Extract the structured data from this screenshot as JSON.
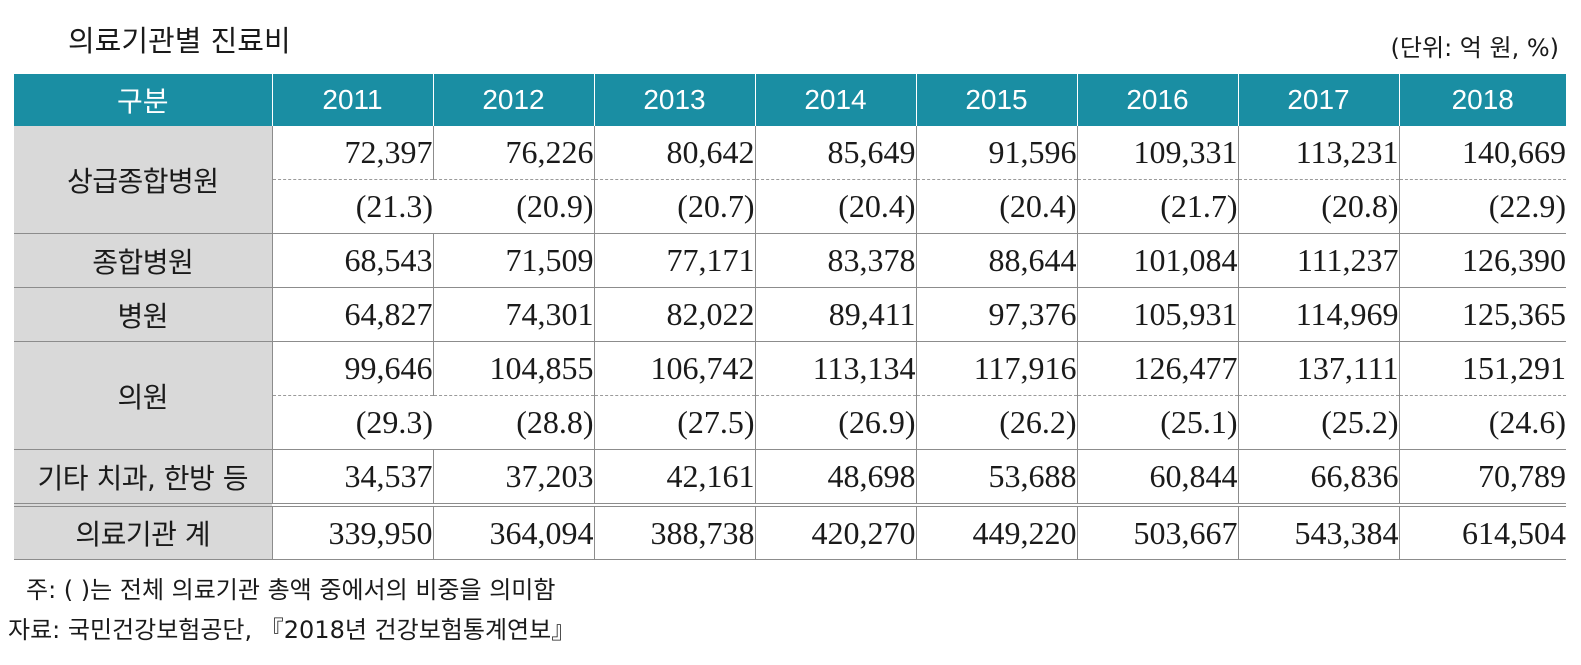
{
  "title": "의료기관별 진료비",
  "unit": "(단위: 억 원, %)",
  "table": {
    "corner": "구분",
    "years": [
      "2011",
      "2012",
      "2013",
      "2014",
      "2015",
      "2016",
      "2017",
      "2018"
    ],
    "rows": {
      "tertiary": {
        "label": "상급종합병원",
        "values": [
          "72,397",
          "76,226",
          "80,642",
          "85,649",
          "91,596",
          "109,331",
          "113,231",
          "140,669"
        ],
        "shares": [
          "(21.3)",
          "(20.9)",
          "(20.7)",
          "(20.4)",
          "(20.4)",
          "(21.7)",
          "(20.8)",
          "(22.9)"
        ]
      },
      "general": {
        "label": "종합병원",
        "values": [
          "68,543",
          "71,509",
          "77,171",
          "83,378",
          "88,644",
          "101,084",
          "111,237",
          "126,390"
        ]
      },
      "hospital": {
        "label": "병원",
        "values": [
          "64,827",
          "74,301",
          "82,022",
          "89,411",
          "97,376",
          "105,931",
          "114,969",
          "125,365"
        ]
      },
      "clinic": {
        "label": "의원",
        "values": [
          "99,646",
          "104,855",
          "106,742",
          "113,134",
          "117,916",
          "126,477",
          "137,111",
          "151,291"
        ],
        "shares": [
          "(29.3)",
          "(28.8)",
          "(27.5)",
          "(26.9)",
          "(26.2)",
          "(25.1)",
          "(25.2)",
          "(24.6)"
        ]
      },
      "others": {
        "label": "기타 치과, 한방 등",
        "values": [
          "34,537",
          "37,203",
          "42,161",
          "48,698",
          "53,688",
          "60,844",
          "66,836",
          "70,789"
        ]
      },
      "total": {
        "label": "의료기관 계",
        "values": [
          "339,950",
          "364,094",
          "388,738",
          "420,270",
          "449,220",
          "503,667",
          "543,384",
          "614,504"
        ]
      }
    }
  },
  "note": "주: ( )는 전체 의료기관 총액 중에서의 비중을 의미함",
  "source": "자료: 국민건강보험공단, 『2018년 건강보험통계연보』",
  "colors": {
    "header_bg": "#1a8ea3",
    "header_text": "#ffffff",
    "label_bg": "#d9d9d9",
    "border": "#8c8c8c"
  }
}
